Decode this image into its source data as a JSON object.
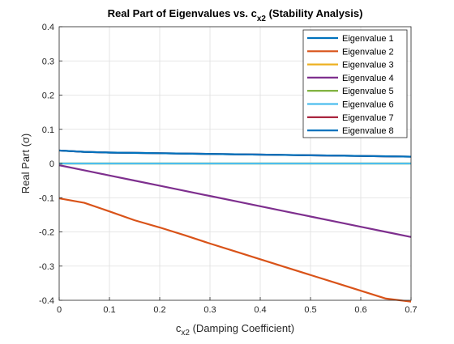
{
  "chart_data": {
    "type": "line",
    "title": "Real Part of Eigenvalues vs. c",
    "title_sub": "x2",
    "title_suffix": " (Stability Analysis)",
    "xlabel": "c",
    "xlabel_sub": "x2",
    "xlabel_suffix": " (Damping Coefficient)",
    "ylabel": "Real Part (σ)",
    "xlim": [
      0,
      0.7
    ],
    "ylim": [
      -0.4,
      0.4
    ],
    "xticks": [
      "0",
      "0.1",
      "0.2",
      "0.3",
      "0.4",
      "0.5",
      "0.6",
      "0.7"
    ],
    "yticks": [
      "-0.4",
      "-0.3",
      "-0.2",
      "-0.1",
      "0",
      "0.1",
      "0.2",
      "0.3",
      "0.4"
    ],
    "grid": true,
    "legend_position": "top-right",
    "x": [
      0,
      0.05,
      0.1,
      0.15,
      0.2,
      0.25,
      0.3,
      0.35,
      0.4,
      0.45,
      0.5,
      0.55,
      0.6,
      0.65,
      0.7
    ],
    "series": [
      {
        "name": "Eigenvalue 1",
        "color": "#0072BD",
        "values": [
          0.038,
          0.034,
          0.032,
          0.031,
          0.03,
          0.029,
          0.028,
          0.027,
          0.026,
          0.025,
          0.024,
          0.023,
          0.022,
          0.021,
          0.02
        ]
      },
      {
        "name": "Eigenvalue 2",
        "color": "#D95319",
        "values": [
          -0.102,
          -0.115,
          -0.14,
          -0.166,
          -0.187,
          -0.21,
          -0.234,
          -0.257,
          -0.28,
          -0.303,
          -0.326,
          -0.349,
          -0.372,
          -0.395,
          -0.404
        ]
      },
      {
        "name": "Eigenvalue 3",
        "color": "#EDB120",
        "values": [
          0,
          0,
          0,
          0,
          0,
          0,
          0,
          0,
          0,
          0,
          0,
          0,
          0,
          0,
          0
        ]
      },
      {
        "name": "Eigenvalue 4",
        "color": "#7E2F8E",
        "values": [
          -0.005,
          -0.02,
          -0.035,
          -0.05,
          -0.065,
          -0.08,
          -0.095,
          -0.11,
          -0.125,
          -0.14,
          -0.155,
          -0.17,
          -0.185,
          -0.2,
          -0.215
        ]
      },
      {
        "name": "Eigenvalue 5",
        "color": "#77AC30",
        "values": [
          0,
          0,
          0,
          0,
          0,
          0,
          0,
          0,
          0,
          0,
          0,
          0,
          0,
          0,
          0
        ]
      },
      {
        "name": "Eigenvalue 6",
        "color": "#4DBEEE",
        "values": [
          0,
          0,
          0,
          0,
          0,
          0,
          0,
          0,
          0,
          0,
          0,
          0,
          0,
          0,
          0
        ]
      },
      {
        "name": "Eigenvalue 7",
        "color": "#A2142F",
        "values": [
          0.038,
          0.034,
          0.032,
          0.031,
          0.03,
          0.029,
          0.028,
          0.027,
          0.026,
          0.025,
          0.024,
          0.023,
          0.022,
          0.021,
          0.02
        ]
      },
      {
        "name": "Eigenvalue 8",
        "color": "#0072BD",
        "values": [
          0.038,
          0.034,
          0.032,
          0.031,
          0.03,
          0.029,
          0.028,
          0.027,
          0.026,
          0.025,
          0.024,
          0.023,
          0.022,
          0.021,
          0.02
        ]
      }
    ]
  }
}
